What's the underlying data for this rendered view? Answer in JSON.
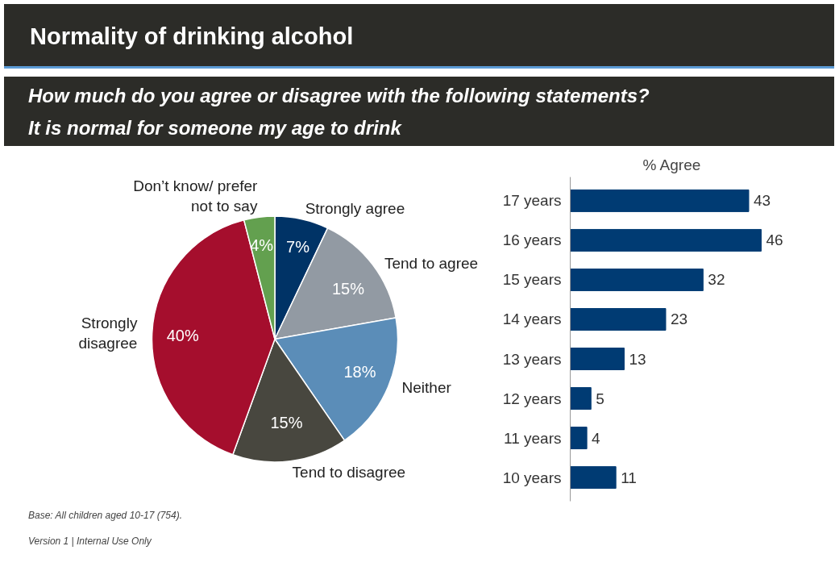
{
  "chart_data": [
    {
      "type": "pie",
      "title": "Normality of drinking alcohol",
      "subtitle": "How much do you agree or disagree with the following statements?\nIt is normal for someone my age to drink",
      "categories": [
        "Strongly agree",
        "Tend to agree",
        "Neither",
        "Tend to disagree",
        "Strongly disagree",
        "Don’t know/ prefer not to say"
      ],
      "values": [
        7,
        15,
        18,
        15,
        40,
        4
      ],
      "value_labels": [
        "7%",
        "15%",
        "18%",
        "15%",
        "40%",
        "4%"
      ],
      "colors": [
        "#003366",
        "#929aa3",
        "#5b8db8",
        "#48473f",
        "#a50e2d",
        "#63a04f"
      ],
      "annotations": [
        "Base:  All children aged 10-17 (754).",
        "Version 1 | Internal Use Only"
      ]
    },
    {
      "type": "bar",
      "orientation": "horizontal",
      "title": "% Agree",
      "categories": [
        "17 years",
        "16 years",
        "15 years",
        "14 years",
        "13 years",
        "12 years",
        "11 years",
        "10 years"
      ],
      "values": [
        43,
        46,
        32,
        23,
        13,
        5,
        4,
        11
      ],
      "color": "#003b73",
      "data_labels": true
    }
  ]
}
